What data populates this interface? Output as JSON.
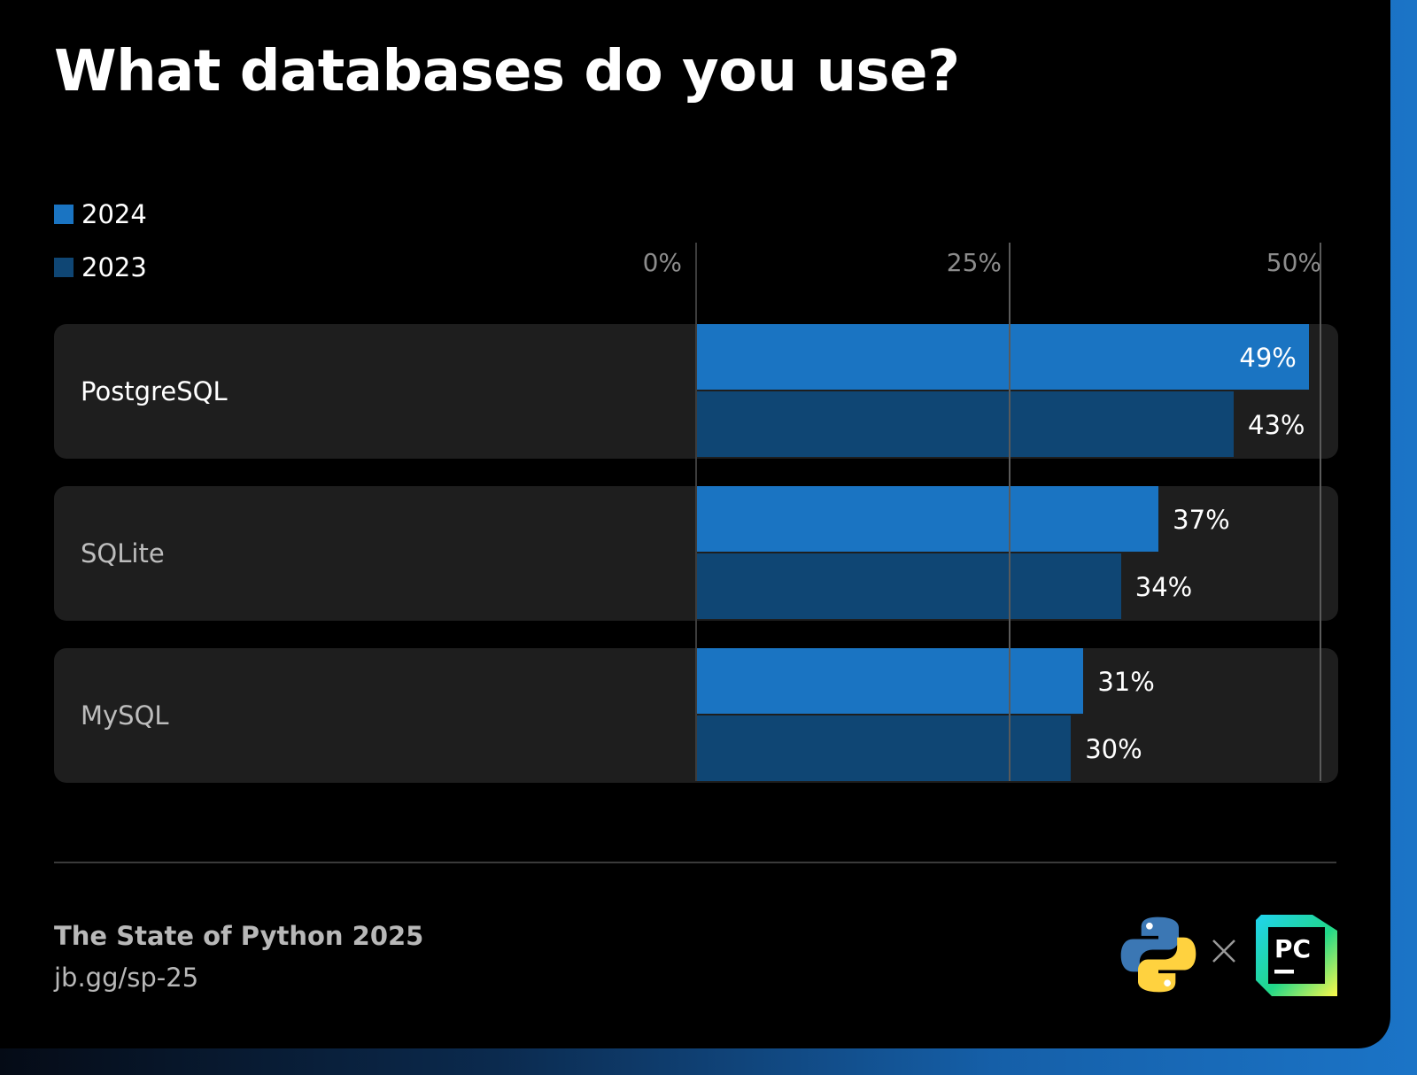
{
  "header": {
    "title": "What databases do you use?"
  },
  "legend": [
    {
      "label": "2024",
      "color": "#1a74c2"
    },
    {
      "label": "2023",
      "color": "#0f4674"
    }
  ],
  "axis": {
    "ticks": [
      "0%",
      "25%",
      "50%"
    ]
  },
  "footer": {
    "title": "The State of Python 2025",
    "link": "jb.gg/sp-25"
  },
  "logos": {
    "python": "python-logo-icon",
    "separator": "x-icon",
    "pycharm_text": "PC"
  },
  "chart_data": {
    "type": "bar",
    "orientation": "horizontal",
    "title": "What databases do you use?",
    "categories": [
      "PostgreSQL",
      "SQLite",
      "MySQL"
    ],
    "series": [
      {
        "name": "2024",
        "values": [
          49,
          37,
          31
        ],
        "labels": [
          "49%",
          "37%",
          "31%"
        ],
        "color": "#1a74c2"
      },
      {
        "name": "2023",
        "values": [
          43,
          34,
          30
        ],
        "labels": [
          "43%",
          "34%",
          "30%"
        ],
        "color": "#0f4674"
      }
    ],
    "xlim": [
      0,
      50
    ],
    "xticks": [
      "0%",
      "25%",
      "50%"
    ],
    "unit": "%",
    "legend": "top-left",
    "grid": true
  }
}
